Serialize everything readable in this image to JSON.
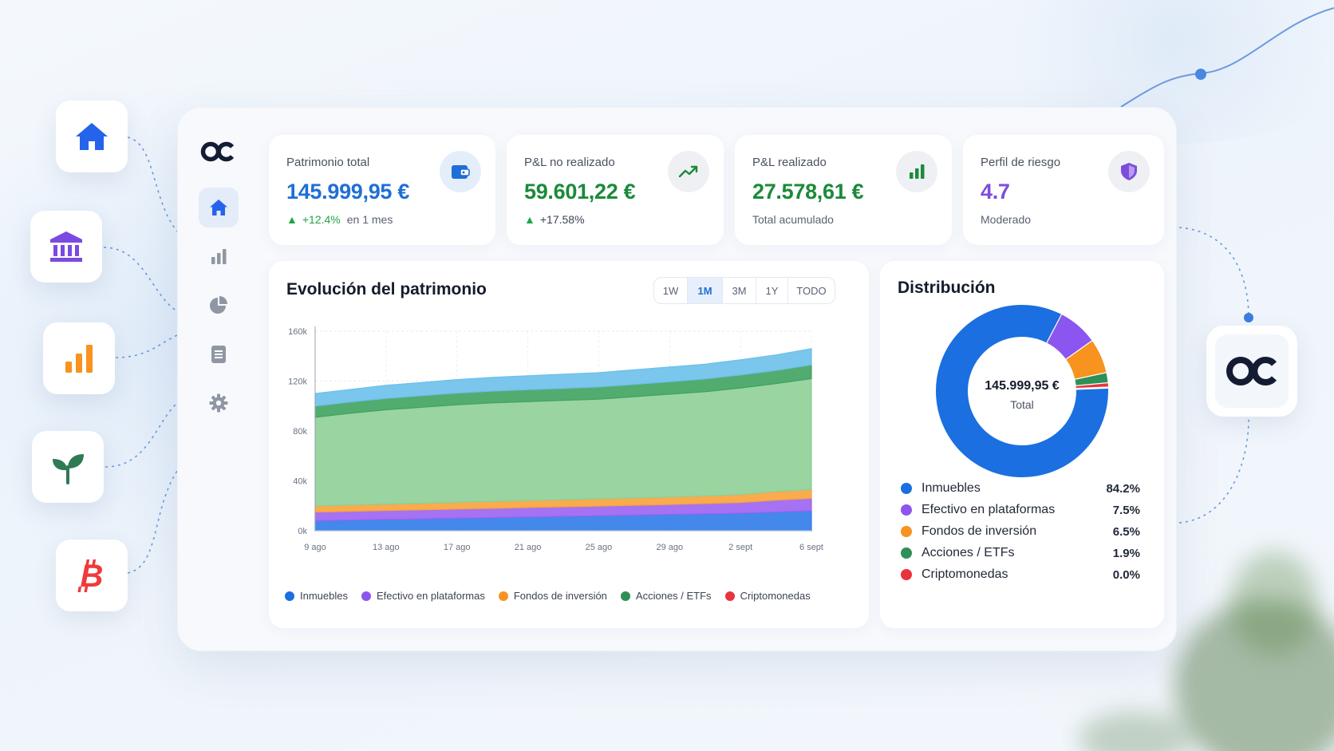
{
  "kpis": [
    {
      "label": "Patrimonio total",
      "value": "145.999,95 €",
      "change": "+12.4%",
      "period": "en 1 mes",
      "color": "#1f6fd6",
      "icon": "wallet-icon"
    },
    {
      "label": "P&L no realizado",
      "value": "59.601,22 €",
      "change": "+17.58%",
      "period": "",
      "color": "#1b8a3a",
      "icon": "trend-up-icon"
    },
    {
      "label": "P&L realizado",
      "value": "27.578,61 €",
      "sub": "Total acumulado",
      "color": "#1b8a3a",
      "icon": "bar-chart-icon"
    },
    {
      "label": "Perfil de riesgo",
      "value": "4.7",
      "sub": "Moderado",
      "color": "#7c4ddb",
      "icon": "shield-icon"
    }
  ],
  "evolution": {
    "title": "Evolución del patrimonio",
    "ranges": [
      "1W",
      "1M",
      "3M",
      "1Y",
      "TODO"
    ],
    "active_range": "1M"
  },
  "distribution": {
    "title": "Distribución",
    "center_value": "145.999,95 €",
    "center_label": "Total",
    "items": [
      {
        "name": "Inmuebles",
        "pct": "84.2%",
        "value": 84.2,
        "color": "#1b6fe0"
      },
      {
        "name": "Efectivo en plataformas",
        "pct": "7.5%",
        "value": 7.5,
        "color": "#8b55f0"
      },
      {
        "name": "Fondos de inversión",
        "pct": "6.5%",
        "value": 6.5,
        "color": "#f7931e"
      },
      {
        "name": "Acciones / ETFs",
        "pct": "1.9%",
        "value": 1.9,
        "color": "#2e8f57"
      },
      {
        "name": "Criptomonedas",
        "pct": "0.0%",
        "value": 0.0,
        "color": "#e8343c"
      }
    ]
  },
  "chart_data": {
    "type": "area",
    "x": [
      "9 ago",
      "11 ago",
      "13 ago",
      "15 ago",
      "17 ago",
      "19 ago",
      "21 ago",
      "23 ago",
      "25 ago",
      "27 ago",
      "29 ago",
      "31 ago",
      "2 sept",
      "4 sept",
      "6 sept"
    ],
    "x_tick_labels": [
      "9 ago",
      "13 ago",
      "17 ago",
      "21 ago",
      "25 ago",
      "29 ago",
      "2 sept",
      "6 sept"
    ],
    "y_tick_labels": [
      "0k",
      "40k",
      "80k",
      "120k",
      "160k"
    ],
    "ylim": [
      0,
      160000
    ],
    "stacked": true,
    "grid": true,
    "legend": "bottom",
    "series": [
      {
        "name": "Inmuebles",
        "color": "#2f7be8",
        "values": [
          8000,
          8500,
          9000,
          9500,
          10000,
          10500,
          11000,
          11500,
          12000,
          12500,
          13000,
          13500,
          14000,
          15000,
          16000
        ]
      },
      {
        "name": "Efectivo en plataformas",
        "color": "#9a63f2",
        "values": [
          7000,
          7100,
          7200,
          7300,
          7400,
          7500,
          7600,
          7700,
          7800,
          7900,
          8000,
          8300,
          8600,
          9500,
          10000
        ]
      },
      {
        "name": "Fondos de inversión",
        "color": "#f8a23a",
        "values": [
          5000,
          5100,
          5200,
          5300,
          5400,
          5500,
          5600,
          5700,
          5800,
          5900,
          6000,
          6200,
          6400,
          7000,
          7000
        ]
      },
      {
        "name": "Acciones / ETFs",
        "color": "#8fcf97",
        "values": [
          71000,
          73500,
          75600,
          76900,
          78200,
          79000,
          79300,
          79600,
          79900,
          81200,
          82500,
          83500,
          85500,
          86500,
          89000
        ]
      },
      {
        "name": "Acciones / ETFs",
        "color": "#3fa35f",
        "values": [
          9000,
          9100,
          9200,
          9300,
          9400,
          9500,
          9600,
          9700,
          9800,
          9900,
          10000,
          10200,
          10400,
          10500,
          11000
        ]
      },
      {
        "name": "Criptomonedas",
        "color": "#6cc0ea",
        "values": [
          10000,
          10000,
          10500,
          10500,
          10800,
          11000,
          11200,
          11300,
          11400,
          11700,
          11800,
          11900,
          12100,
          12500,
          13000
        ]
      }
    ],
    "legend_entries": [
      {
        "name": "Inmuebles",
        "color": "#1b6fe0"
      },
      {
        "name": "Efectivo en plataformas",
        "color": "#8b55f0"
      },
      {
        "name": "Fondos de inversión",
        "color": "#f7931e"
      },
      {
        "name": "Acciones / ETFs",
        "color": "#2e8f57"
      },
      {
        "name": "Criptomonedas",
        "color": "#e8343c"
      }
    ]
  }
}
